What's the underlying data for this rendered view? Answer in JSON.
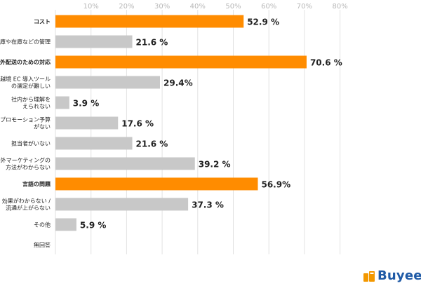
{
  "chart_data": {
    "type": "bar",
    "orientation": "horizontal",
    "title": "",
    "xlabel": "",
    "ylabel": "",
    "xlim": [
      0,
      80
    ],
    "ticks": [
      "10%",
      "20%",
      "30%",
      "40%",
      "50%",
      "60%",
      "70%",
      "80%"
    ],
    "tick_values": [
      10,
      20,
      30,
      40,
      50,
      60,
      70,
      80
    ],
    "grid": true,
    "legend": "none",
    "categories": [
      {
        "lines": [
          "コスト"
        ],
        "bold": true
      },
      {
        "lines": [
          "倉庫や在庫などの管理"
        ],
        "bold": false
      },
      {
        "lines": [
          "海外配送のための対応"
        ],
        "bold": true
      },
      {
        "lines": [
          "越境 EC 導入ツール",
          "の選定が難しい"
        ],
        "bold": false
      },
      {
        "lines": [
          "社内から理解を",
          "えられない"
        ],
        "bold": false
      },
      {
        "lines": [
          "プロモーション予算",
          "がない"
        ],
        "bold": false
      },
      {
        "lines": [
          "担当者がいない"
        ],
        "bold": false
      },
      {
        "lines": [
          "海外マーケティングの",
          "方法がわからない"
        ],
        "bold": false
      },
      {
        "lines": [
          "言語の問題"
        ],
        "bold": true
      },
      {
        "lines": [
          "効果がわからない /",
          "流通が上がらない"
        ],
        "bold": false
      },
      {
        "lines": [
          "その他"
        ],
        "bold": false
      },
      {
        "lines": [
          "無回答"
        ],
        "bold": false
      }
    ],
    "values": [
      52.9,
      21.6,
      70.6,
      29.4,
      3.9,
      17.6,
      21.6,
      39.2,
      56.9,
      37.3,
      5.9,
      0
    ],
    "value_labels": [
      "52.9 %",
      "21.6 %",
      "70.6 %",
      "29.4%",
      "3.9 %",
      "17.6 %",
      "21.6 %",
      "39.2 %",
      "56.9%",
      "37.3 %",
      "5.9 %",
      ""
    ],
    "highlighted": [
      true,
      false,
      true,
      false,
      false,
      false,
      false,
      false,
      true,
      false,
      false,
      false
    ],
    "colors": {
      "highlight": "#ff8c00",
      "normal": "#c8c8c8",
      "grid": "#e2e2e2",
      "tick": "#b8b8b8",
      "label": "#222222"
    }
  },
  "brand": {
    "name": "Buyee",
    "color": "#1f5aa6",
    "mark_color": "#f39800",
    "mark_icon": "shopping-bag-icon"
  }
}
